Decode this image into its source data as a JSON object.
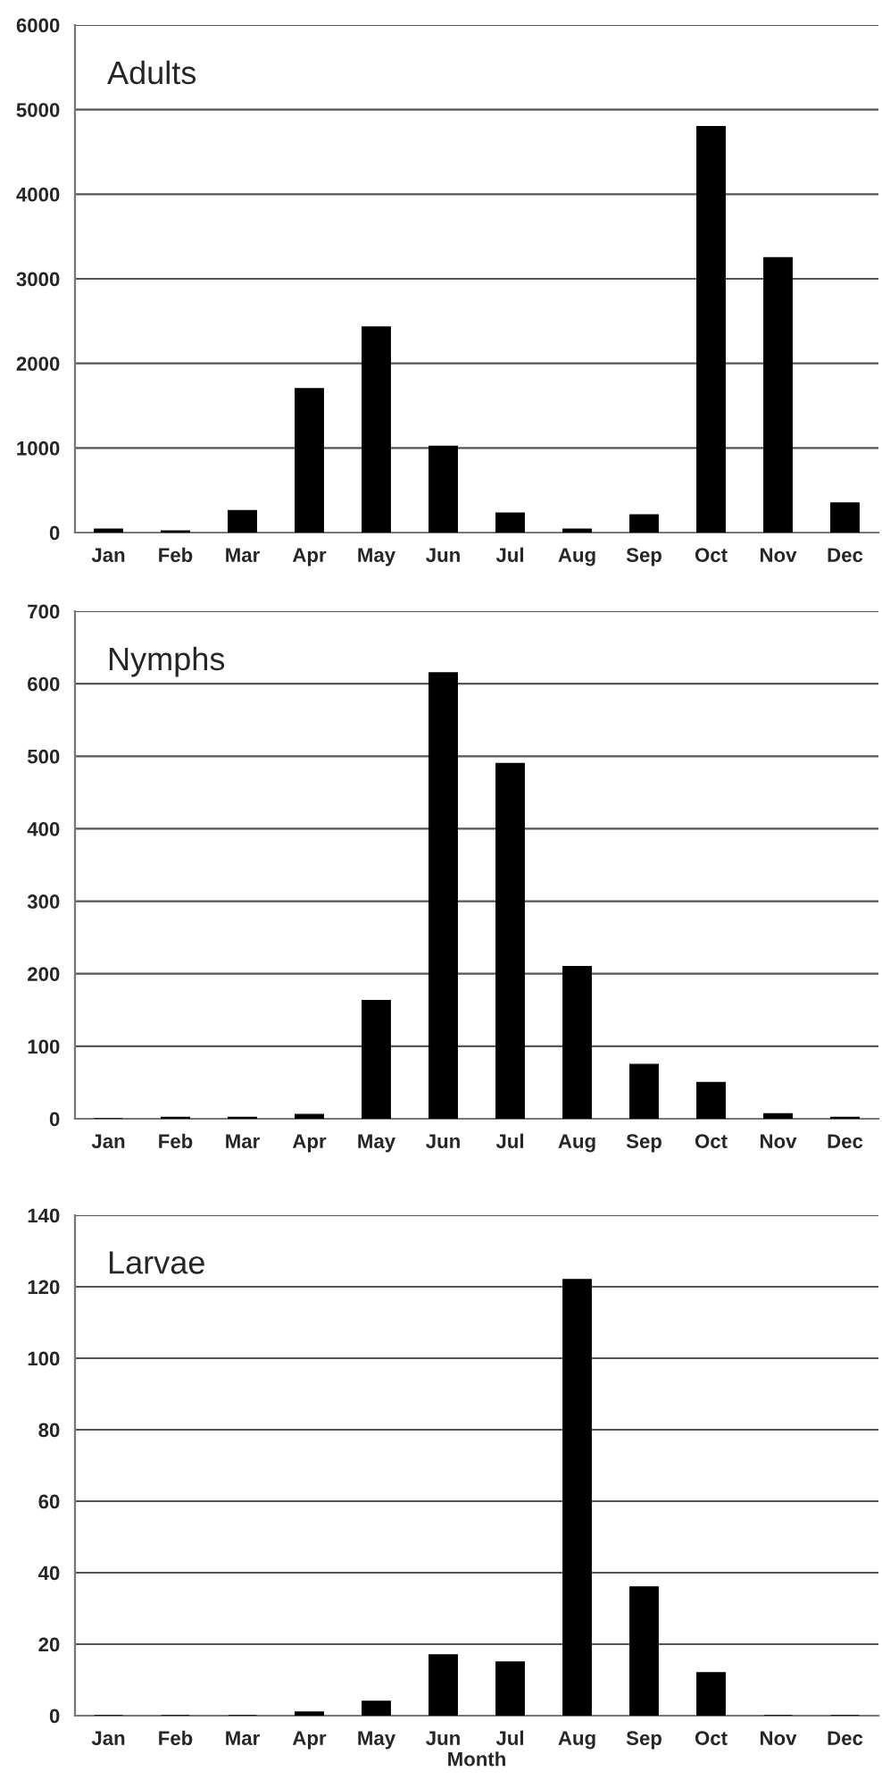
{
  "chart_data": [
    {
      "type": "bar",
      "title": "Adults",
      "categories": [
        "Jan",
        "Feb",
        "Mar",
        "Apr",
        "May",
        "Jun",
        "Jul",
        "Aug",
        "Sep",
        "Oct",
        "Nov",
        "Dec"
      ],
      "values": [
        40,
        20,
        260,
        1700,
        2430,
        1020,
        230,
        40,
        210,
        4800,
        3250,
        350
      ],
      "color": "#000000",
      "ylim": [
        0,
        6000
      ],
      "yticks": [
        0,
        1000,
        2000,
        3000,
        4000,
        5000,
        6000
      ],
      "grid": "y",
      "legend": false
    },
    {
      "type": "bar",
      "title": "Nymphs",
      "categories": [
        "Jan",
        "Feb",
        "Mar",
        "Apr",
        "May",
        "Jun",
        "Jul",
        "Aug",
        "Sep",
        "Oct",
        "Nov",
        "Dec"
      ],
      "values": [
        0,
        2,
        2,
        6,
        163,
        615,
        490,
        210,
        75,
        50,
        7,
        2
      ],
      "color": "#000000",
      "ylim": [
        0,
        700
      ],
      "yticks": [
        0,
        100,
        200,
        300,
        400,
        500,
        600,
        700
      ],
      "grid": "y",
      "legend": false
    },
    {
      "type": "bar",
      "title": "Larvae",
      "xlabel": "Month",
      "categories": [
        "Jan",
        "Feb",
        "Mar",
        "Apr",
        "May",
        "Jun",
        "Jul",
        "Aug",
        "Sep",
        "Oct",
        "Nov",
        "Dec"
      ],
      "values": [
        0,
        0,
        0,
        1,
        4,
        17,
        15,
        122,
        36,
        12,
        0,
        0
      ],
      "color": "#000000",
      "ylim": [
        0,
        140
      ],
      "yticks": [
        0,
        20,
        40,
        60,
        80,
        100,
        120,
        140
      ],
      "grid": "y",
      "legend": false
    }
  ]
}
